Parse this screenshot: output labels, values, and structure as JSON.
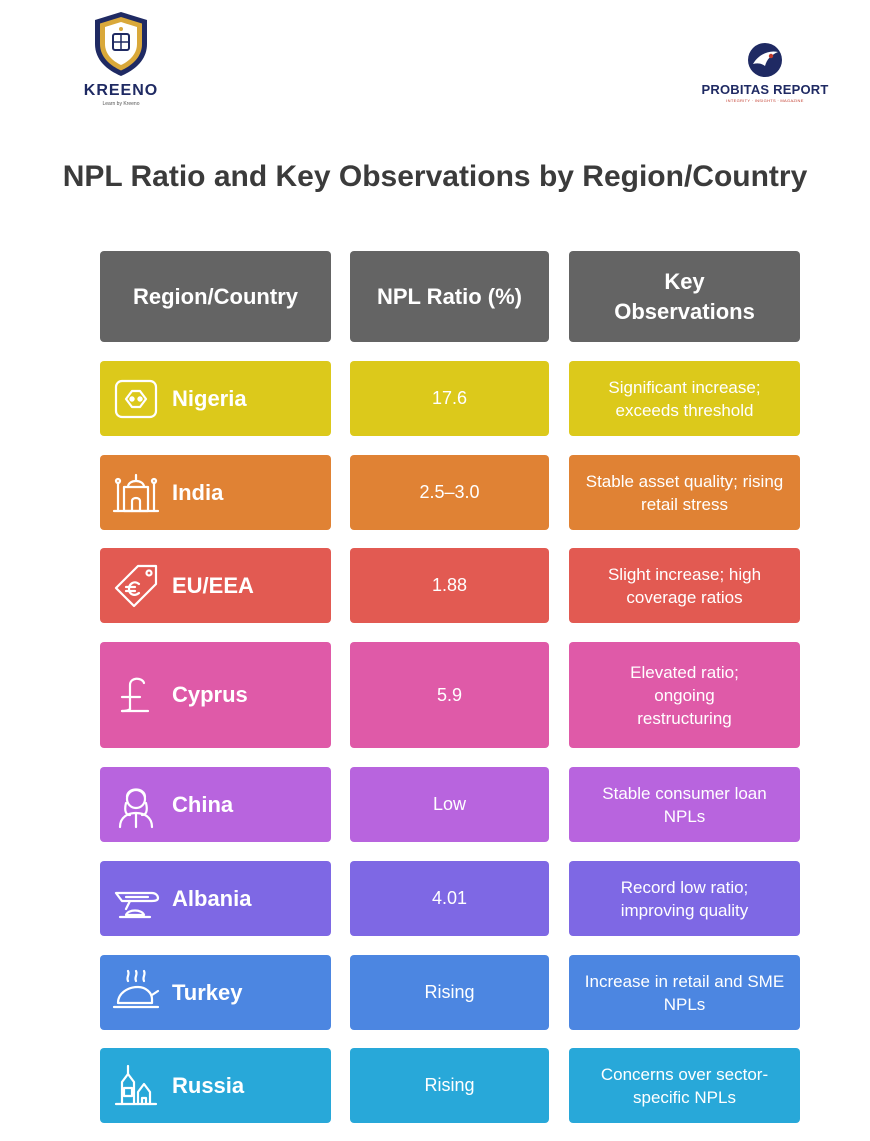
{
  "header": {
    "left_logo": {
      "name": "KREENO",
      "tagline": "Learn by Kreeno"
    },
    "right_logo": {
      "name": "PROBITAS REPORT",
      "tagline": "INTEGRITY · INSIGHTS · MAGAZINE"
    }
  },
  "title": "NPL Ratio and Key Observations by Region/Country",
  "table": {
    "columns": [
      "Region/Country",
      "NPL Ratio (%)",
      "Key Observations"
    ],
    "rows": [
      {
        "country": "Nigeria",
        "ratio": "17.6",
        "observation": "Significant increase; exceeds threshold",
        "color": "#dcc91b",
        "icon": "power-socket-icon"
      },
      {
        "country": "India",
        "ratio": "2.5–3.0",
        "observation": "Stable asset quality; rising retail stress",
        "color": "#e08234",
        "icon": "taj-mahal-icon"
      },
      {
        "country": "EU/EEA",
        "ratio": "1.88",
        "observation": "Slight increase; high coverage ratios",
        "color": "#e25a52",
        "icon": "euro-tag-icon"
      },
      {
        "country": "Cyprus",
        "ratio": "5.9",
        "observation": "Elevated ratio; ongoing restructuring",
        "color": "#df5aa8",
        "icon": "pound-sign-icon"
      },
      {
        "country": "China",
        "ratio": "Low",
        "observation": "Stable consumer loan NPLs",
        "color": "#b864de",
        "icon": "woman-portrait-icon"
      },
      {
        "country": "Albania",
        "ratio": "4.01",
        "observation": "Record low ratio; improving quality",
        "color": "#7e68e4",
        "icon": "airplane-icon"
      },
      {
        "country": "Turkey",
        "ratio": "Rising",
        "observation": "Increase in retail and SME NPLs",
        "color": "#4c86e1",
        "icon": "roast-turkey-icon"
      },
      {
        "country": "Russia",
        "ratio": "Rising",
        "observation": "Concerns over sector-specific NPLs",
        "color": "#28a8d9",
        "icon": "kremlin-icon"
      }
    ]
  }
}
